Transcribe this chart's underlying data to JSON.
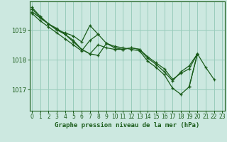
{
  "title": "Graphe pression niveau de la mer (hPa)",
  "background_color": "#cce8e0",
  "grid_color": "#99ccbb",
  "line_color": "#1a5c1a",
  "ylim": [
    1016.3,
    1019.95
  ],
  "xlim": [
    -0.3,
    23.3
  ],
  "yticks": [
    1017,
    1018,
    1019
  ],
  "xticks": [
    0,
    1,
    2,
    3,
    4,
    5,
    6,
    7,
    8,
    9,
    10,
    11,
    12,
    13,
    14,
    15,
    16,
    17,
    18,
    19,
    20,
    21,
    22,
    23
  ],
  "series": [
    [
      1019.75,
      1019.45,
      1019.2,
      1019.0,
      1018.9,
      1018.8,
      1018.6,
      1019.15,
      1018.85,
      null,
      null,
      null,
      null,
      null,
      null,
      null,
      null,
      null,
      null,
      null,
      null,
      null,
      null,
      null
    ],
    [
      1019.6,
      1019.4,
      1019.2,
      1019.05,
      1018.85,
      1018.65,
      1018.35,
      1018.2,
      1018.5,
      1018.4,
      1018.35,
      1018.35,
      1018.4,
      1018.35,
      1018.1,
      1017.9,
      1017.7,
      1017.35,
      1017.55,
      1017.7,
      1018.2,
      null,
      null,
      null
    ],
    [
      1019.55,
      1019.3,
      1019.1,
      1018.9,
      1018.7,
      1018.5,
      1018.3,
      1018.65,
      1018.85,
      1018.55,
      1018.4,
      1018.35,
      1018.4,
      1018.35,
      1018.05,
      1017.85,
      1017.6,
      1017.3,
      1017.6,
      1017.8,
      1018.2,
      null,
      null,
      null
    ],
    [
      1019.7,
      1019.4,
      1019.2,
      1019.0,
      1018.85,
      1018.6,
      1018.35,
      1018.2,
      1018.15,
      1018.55,
      1018.45,
      1018.4,
      1018.35,
      1018.3,
      1017.95,
      1017.75,
      1017.5,
      1017.05,
      1016.85,
      1017.1,
      1018.2,
      null,
      null,
      null
    ],
    [
      null,
      null,
      null,
      null,
      null,
      null,
      null,
      null,
      null,
      null,
      null,
      null,
      null,
      null,
      null,
      null,
      null,
      null,
      null,
      1017.1,
      1018.2,
      1017.75,
      1017.35,
      null
    ]
  ]
}
